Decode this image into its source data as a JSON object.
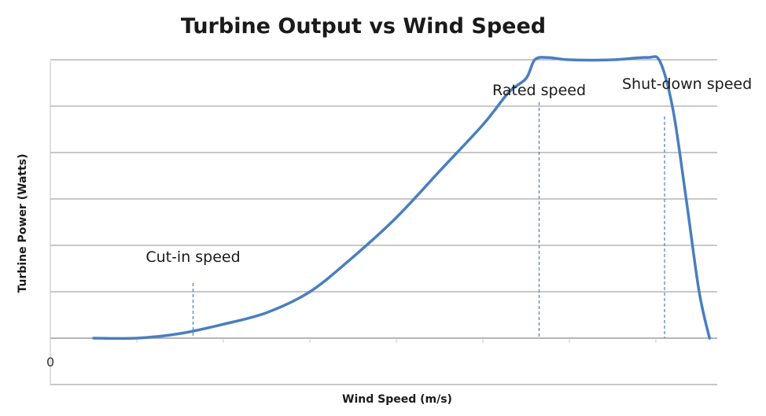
{
  "chart_data": {
    "type": "line",
    "title": "Turbine Output vs Wind Speed",
    "xlabel": "Wind Speed (m/s)",
    "ylabel": "Turbine Power (Watts)",
    "y_tick_labels": [
      "0"
    ],
    "grid": true,
    "legend": "none",
    "xlim": [
      0,
      8
    ],
    "ylim": [
      -1,
      6
    ],
    "series": [
      {
        "color": "#4a7ebf",
        "x": [
          0.5,
          1.0,
          1.5,
          2.0,
          2.5,
          3.0,
          3.5,
          4.0,
          4.5,
          5.0,
          5.3,
          5.5,
          5.6,
          5.75,
          6.0,
          6.5,
          6.9,
          7.05,
          7.2,
          7.35,
          7.5,
          7.62
        ],
        "y": [
          0.0,
          0.0,
          0.1,
          0.3,
          0.55,
          1.0,
          1.75,
          2.6,
          3.6,
          4.6,
          5.3,
          5.6,
          6.0,
          6.05,
          6.0,
          6.0,
          6.05,
          5.95,
          4.9,
          3.0,
          1.0,
          0.0
        ]
      }
    ],
    "annotations": [
      {
        "text": "Cut-in speed",
        "x": 1.65
      },
      {
        "text": "Rated speed",
        "x": 5.65
      },
      {
        "text": "Shut-down speed",
        "x": 7.1
      }
    ]
  }
}
